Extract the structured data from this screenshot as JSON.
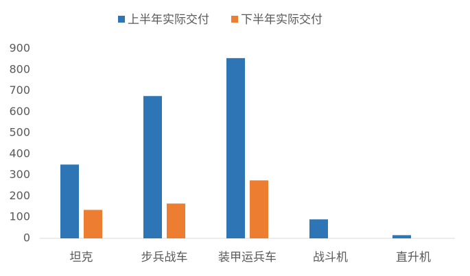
{
  "chart_data": {
    "type": "bar",
    "categories": [
      "坦克",
      "步兵战车",
      "装甲运兵车",
      "战斗机",
      "直升机"
    ],
    "series": [
      {
        "name": "上半年实际交付",
        "color": "#2e75b6",
        "values": [
          350,
          675,
          855,
          90,
          15
        ]
      },
      {
        "name": "下半年实际交付",
        "color": "#ed7d31",
        "values": [
          135,
          165,
          275,
          0,
          0
        ]
      }
    ],
    "ylim": [
      0,
      900
    ],
    "yticks": [
      0,
      100,
      200,
      300,
      400,
      500,
      600,
      700,
      800,
      900
    ],
    "grid": false,
    "legend": "top"
  }
}
